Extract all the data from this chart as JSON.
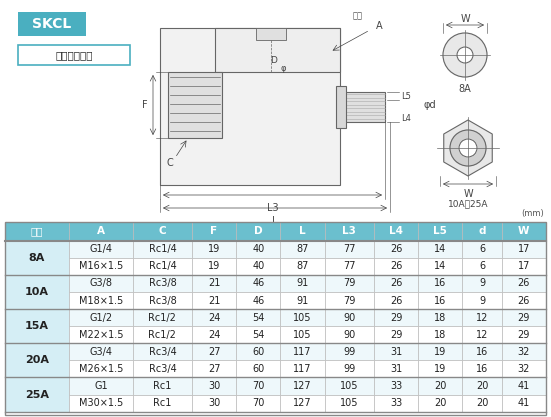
{
  "title": "SKCL",
  "subtitle": "单式螺纹安装",
  "unit_label": "(mm)",
  "header": [
    "尺寸",
    "A",
    "C",
    "F",
    "D",
    "L",
    "L3",
    "L4",
    "L5",
    "d",
    "W"
  ],
  "size_groups": [
    {
      "size": "8A",
      "rows": [
        [
          "G1/4",
          "Rc1/4",
          "19",
          "40",
          "87",
          "77",
          "26",
          "14",
          "6",
          "17"
        ],
        [
          "M16×1.5",
          "Rc1/4",
          "19",
          "40",
          "87",
          "77",
          "26",
          "14",
          "6",
          "17"
        ]
      ]
    },
    {
      "size": "10A",
      "rows": [
        [
          "G3/8",
          "Rc3/8",
          "21",
          "46",
          "91",
          "79",
          "26",
          "16",
          "9",
          "26"
        ],
        [
          "M18×1.5",
          "Rc3/8",
          "21",
          "46",
          "91",
          "79",
          "26",
          "16",
          "9",
          "26"
        ]
      ]
    },
    {
      "size": "15A",
      "rows": [
        [
          "G1/2",
          "Rc1/2",
          "24",
          "54",
          "105",
          "90",
          "29",
          "18",
          "12",
          "29"
        ],
        [
          "M22×1.5",
          "Rc1/2",
          "24",
          "54",
          "105",
          "90",
          "29",
          "18",
          "12",
          "29"
        ]
      ]
    },
    {
      "size": "20A",
      "rows": [
        [
          "G3/4",
          "Rc3/4",
          "27",
          "60",
          "117",
          "99",
          "31",
          "19",
          "16",
          "32"
        ],
        [
          "M26×1.5",
          "Rc3/4",
          "27",
          "60",
          "117",
          "99",
          "31",
          "19",
          "16",
          "32"
        ]
      ]
    },
    {
      "size": "25A",
      "rows": [
        [
          "G1",
          "Rc1",
          "30",
          "70",
          "127",
          "105",
          "33",
          "20",
          "20",
          "41"
        ],
        [
          "M30×1.5",
          "Rc1",
          "30",
          "70",
          "127",
          "105",
          "33",
          "20",
          "20",
          "41"
        ]
      ]
    }
  ],
  "title_bg": "#4aafc0",
  "subtitle_border": "#4aafc0",
  "header_bg": "#6bbfce",
  "size_col_bg": "#d5eef5",
  "row_bg_alt": "#eef8fb",
  "row_bg_normal": "#ffffff",
  "grid_color": "#bbbbbb",
  "text_dark": "#222222",
  "text_header": "#ffffff",
  "lc": "#666666",
  "lc_dim": "#444444"
}
